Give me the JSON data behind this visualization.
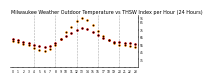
{
  "title": "Milwaukee Weather Outdoor Temperature vs THSW Index per Hour (24 Hours)",
  "hours": [
    0,
    1,
    2,
    3,
    4,
    5,
    6,
    7,
    8,
    9,
    10,
    11,
    12,
    13,
    14,
    15,
    16,
    17,
    18,
    19,
    20,
    21,
    22,
    23
  ],
  "temp": [
    62,
    61,
    59,
    57,
    55,
    53,
    52,
    53,
    57,
    62,
    67,
    71,
    75,
    77,
    76,
    72,
    68,
    64,
    61,
    59,
    58,
    57,
    57,
    56
  ],
  "thsw": [
    60,
    58,
    56,
    54,
    51,
    48,
    47,
    49,
    55,
    63,
    72,
    79,
    86,
    91,
    88,
    81,
    73,
    66,
    61,
    57,
    55,
    54,
    53,
    52
  ],
  "temp_color": "#cc0000",
  "thsw_color": "#ff8800",
  "black_color": "#000000",
  "bg_color": "#ffffff",
  "grid_color": "#888888",
  "title_fontsize": 3.5,
  "ylim": [
    25,
    95
  ],
  "ytick_vals": [
    35,
    45,
    55,
    65,
    75,
    85,
    91
  ],
  "xtick_labels": [
    "0",
    "1",
    "2",
    "3",
    "4",
    "5",
    "6",
    "7",
    "8",
    "9",
    "10",
    "11",
    "12",
    "13",
    "14",
    "15",
    "16",
    "17",
    "18",
    "19",
    "20",
    "21",
    "22",
    "23"
  ],
  "vgrid_hours": [
    4,
    8,
    12,
    16,
    20
  ]
}
